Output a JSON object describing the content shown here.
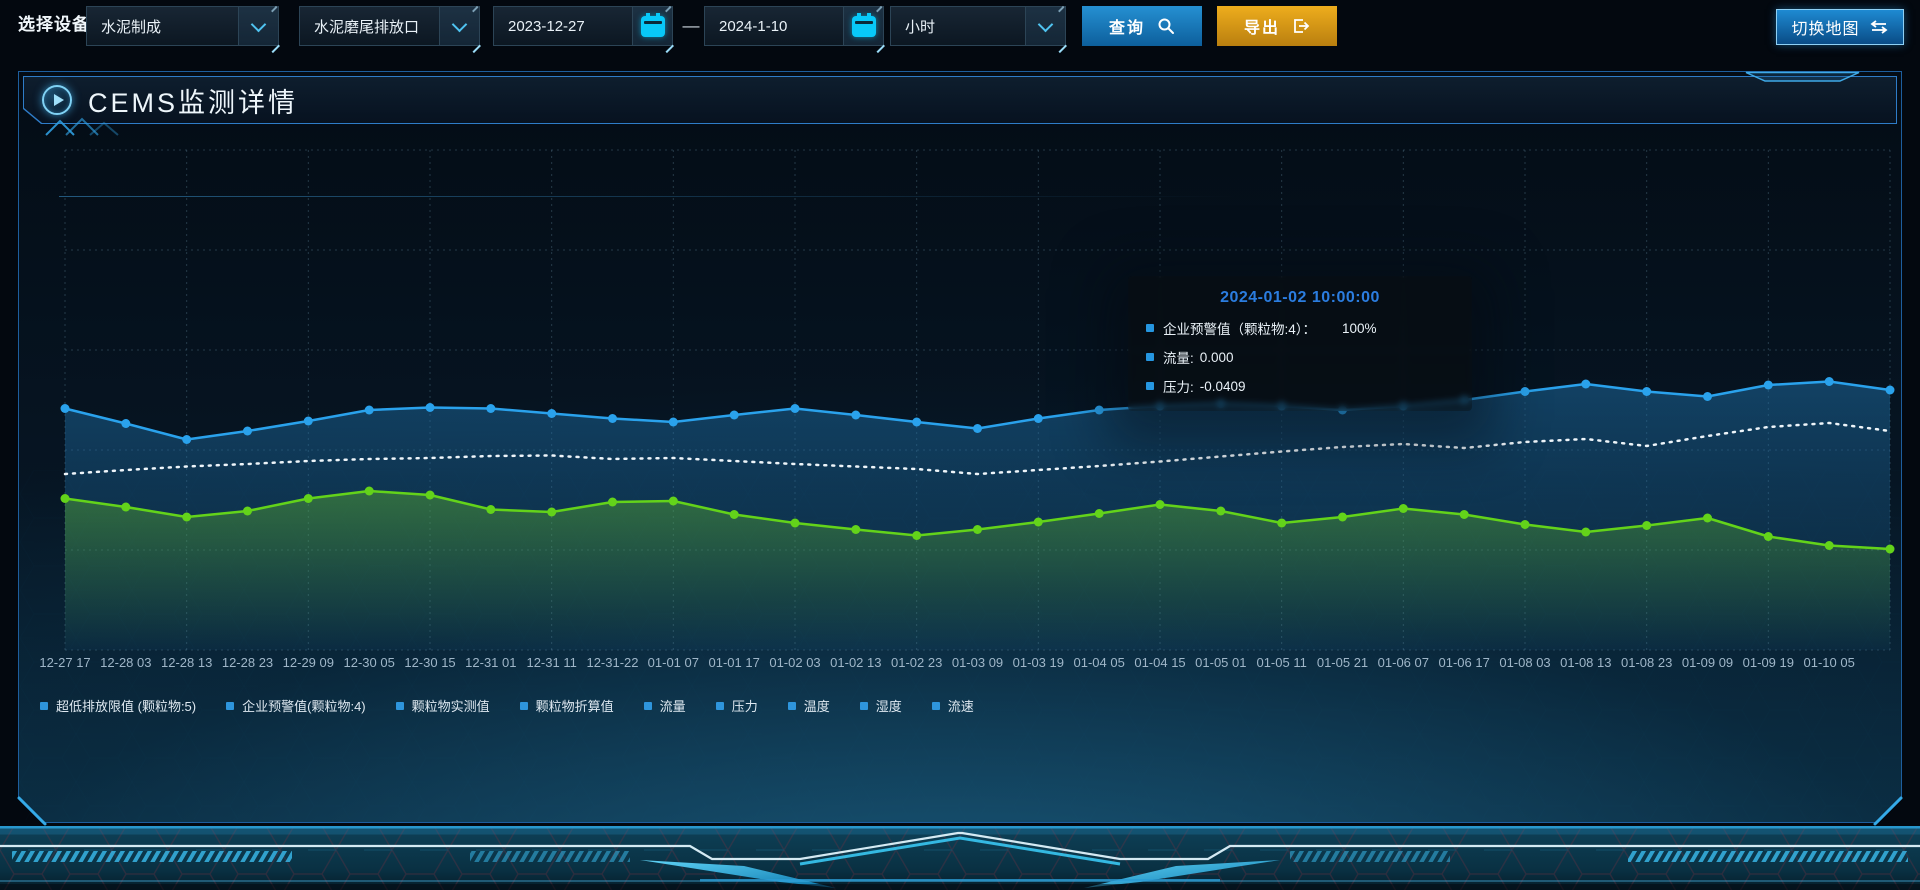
{
  "toolbar": {
    "device_label": "选择设备",
    "device_select": {
      "value": "水泥制成"
    },
    "outlet_select": {
      "value": "水泥磨尾排放口"
    },
    "date_start": {
      "value": "2023-12-27"
    },
    "range_separator": "—",
    "date_end": {
      "value": "2024-1-10"
    },
    "interval_select": {
      "value": "小时"
    },
    "query_button": {
      "label": "查询"
    },
    "export_button": {
      "label": "导出"
    },
    "switch_map_button": {
      "label": "切换地图"
    }
  },
  "panel": {
    "title": "CEMS监测详情"
  },
  "tooltip": {
    "title": "2024-01-02 10:00:00",
    "rows": [
      {
        "label": "企业预警值（颗粒物:4）：",
        "value": "100%",
        "wide_gap": true
      },
      {
        "label": "流量:",
        "value": "0.000"
      },
      {
        "label": "压力:",
        "value": "-0.0409"
      }
    ]
  },
  "chart_data": {
    "type": "line",
    "title": "CEMS监测详情",
    "x_labels": [
      "12-27 17",
      "12-28 03",
      "12-28 13",
      "12-28 23",
      "12-29 09",
      "12-30 05",
      "12-30 15",
      "12-31 01",
      "12-31 11",
      "12-31-22",
      "01-01 07",
      "01-01 17",
      "01-02 03",
      "01-02 13",
      "01-02 23",
      "01-03 09",
      "01-03 19",
      "01-04 05",
      "01-04 15",
      "01-05 01",
      "01-05 11",
      "01-05 21",
      "01-06 07",
      "01-06 17",
      "01-08 03",
      "01-08 13",
      "01-08 23",
      "01-09 09",
      "01-09 19",
      "01-10 05"
    ],
    "y_axis": {
      "visible": false,
      "note": "no y-axis ticks are shown in the UI; series values are relative heights in % of plot height (0 = bottom, 100 = top), estimated from pixels"
    },
    "grid": {
      "shown": true,
      "style": "dashed",
      "v_lines": 16,
      "h_lines": 6
    },
    "legend_position": "bottom",
    "legend": [
      "超低排放限值 (颗粒物:5)",
      "企业预警值(颗粒物:4)",
      "颗粒物实测值",
      "颗粒物折算值",
      "流量",
      "压力",
      "温度",
      "湿度",
      "流速"
    ],
    "series": [
      {
        "name": "blue-solid-line",
        "color": "#2aa2ec",
        "line_style": "solid",
        "markers": true,
        "area_from": "rgba(30,112,168,0.50)",
        "area_to": "rgba(30,112,168,0.08)",
        "values": [
          48.3,
          45.3,
          42.1,
          43.8,
          45.8,
          48.0,
          48.5,
          48.3,
          47.3,
          46.3,
          45.6,
          47.0,
          48.3,
          47.0,
          45.6,
          44.3,
          46.3,
          48.0,
          48.8,
          49.3,
          48.8,
          48.0,
          48.8,
          50.0,
          51.7,
          53.2,
          51.7,
          50.7,
          53.0,
          53.7,
          52.0
        ]
      },
      {
        "name": "white-dotted-line",
        "color": "#eef5fa",
        "line_style": "dotted",
        "markers": false,
        "values": [
          35.2,
          36.0,
          36.7,
          37.2,
          37.8,
          38.2,
          38.4,
          38.8,
          38.9,
          38.2,
          38.4,
          37.8,
          37.2,
          36.7,
          36.2,
          35.2,
          36.0,
          36.8,
          37.7,
          38.7,
          39.7,
          40.6,
          41.2,
          40.4,
          41.6,
          42.2,
          40.8,
          42.8,
          44.6,
          45.4,
          43.8
        ]
      },
      {
        "name": "green-solid-line",
        "color": "#63d31a",
        "line_style": "solid",
        "markers": true,
        "area_from": "rgba(104,198,38,0.38)",
        "area_to": "rgba(104,198,38,0)",
        "values": [
          30.3,
          28.6,
          26.6,
          27.8,
          30.3,
          31.8,
          31.0,
          28.1,
          27.6,
          29.6,
          29.8,
          27.1,
          25.4,
          24.1,
          22.9,
          24.1,
          25.6,
          27.3,
          29.1,
          27.8,
          25.4,
          26.6,
          28.3,
          27.1,
          25.1,
          23.6,
          24.9,
          26.4,
          22.7,
          20.9,
          20.2
        ]
      }
    ]
  },
  "colors": {
    "accent_blue": "#2596e0",
    "accent_cyan": "#08c8f8",
    "button_blue": "#1878bc",
    "button_orange": "#d9981a",
    "panel_border": "#1d5e9e",
    "tooltip_title": "#2b7de0",
    "series_blue": "#2aa2ec",
    "series_green": "#63d31a",
    "series_white": "#eef5fa"
  }
}
